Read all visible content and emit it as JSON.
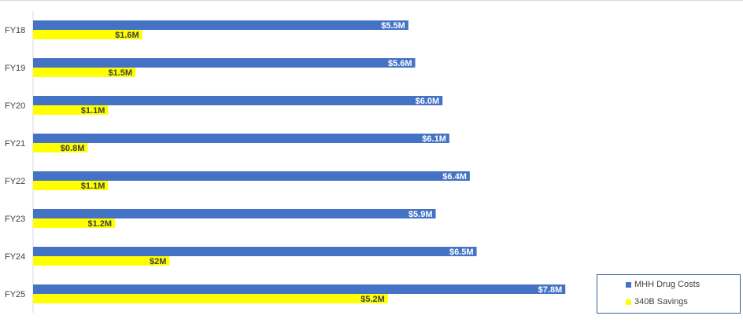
{
  "chart_data": {
    "type": "bar",
    "orientation": "horizontal",
    "categories": [
      "FY18",
      "FY19",
      "FY20",
      "FY21",
      "FY22",
      "FY23",
      "FY24",
      "FY25"
    ],
    "series": [
      {
        "name": "MHH Drug Costs",
        "color": "#4472c4",
        "values": [
          5.5,
          5.6,
          6.0,
          6.1,
          6.4,
          5.9,
          6.5,
          7.8
        ],
        "labels": [
          "$5.5M",
          "$5.6M",
          "$6.0M",
          "$6.1M",
          "$6.4M",
          "$5.9M",
          "$6.5M",
          "$7.8M"
        ]
      },
      {
        "name": "340B Savings",
        "color": "#ffff00",
        "values": [
          1.6,
          1.5,
          1.1,
          0.8,
          1.1,
          1.2,
          2.0,
          5.2
        ],
        "labels": [
          "$1.6M",
          "$1.5M",
          "$1.1M",
          "$0.8M",
          "$1.1M",
          "$1.2M",
          "$2M",
          "$5.2M"
        ]
      }
    ],
    "title": "",
    "xlabel": "",
    "ylabel": "",
    "grid": false,
    "legend_position": "bottom-right"
  }
}
